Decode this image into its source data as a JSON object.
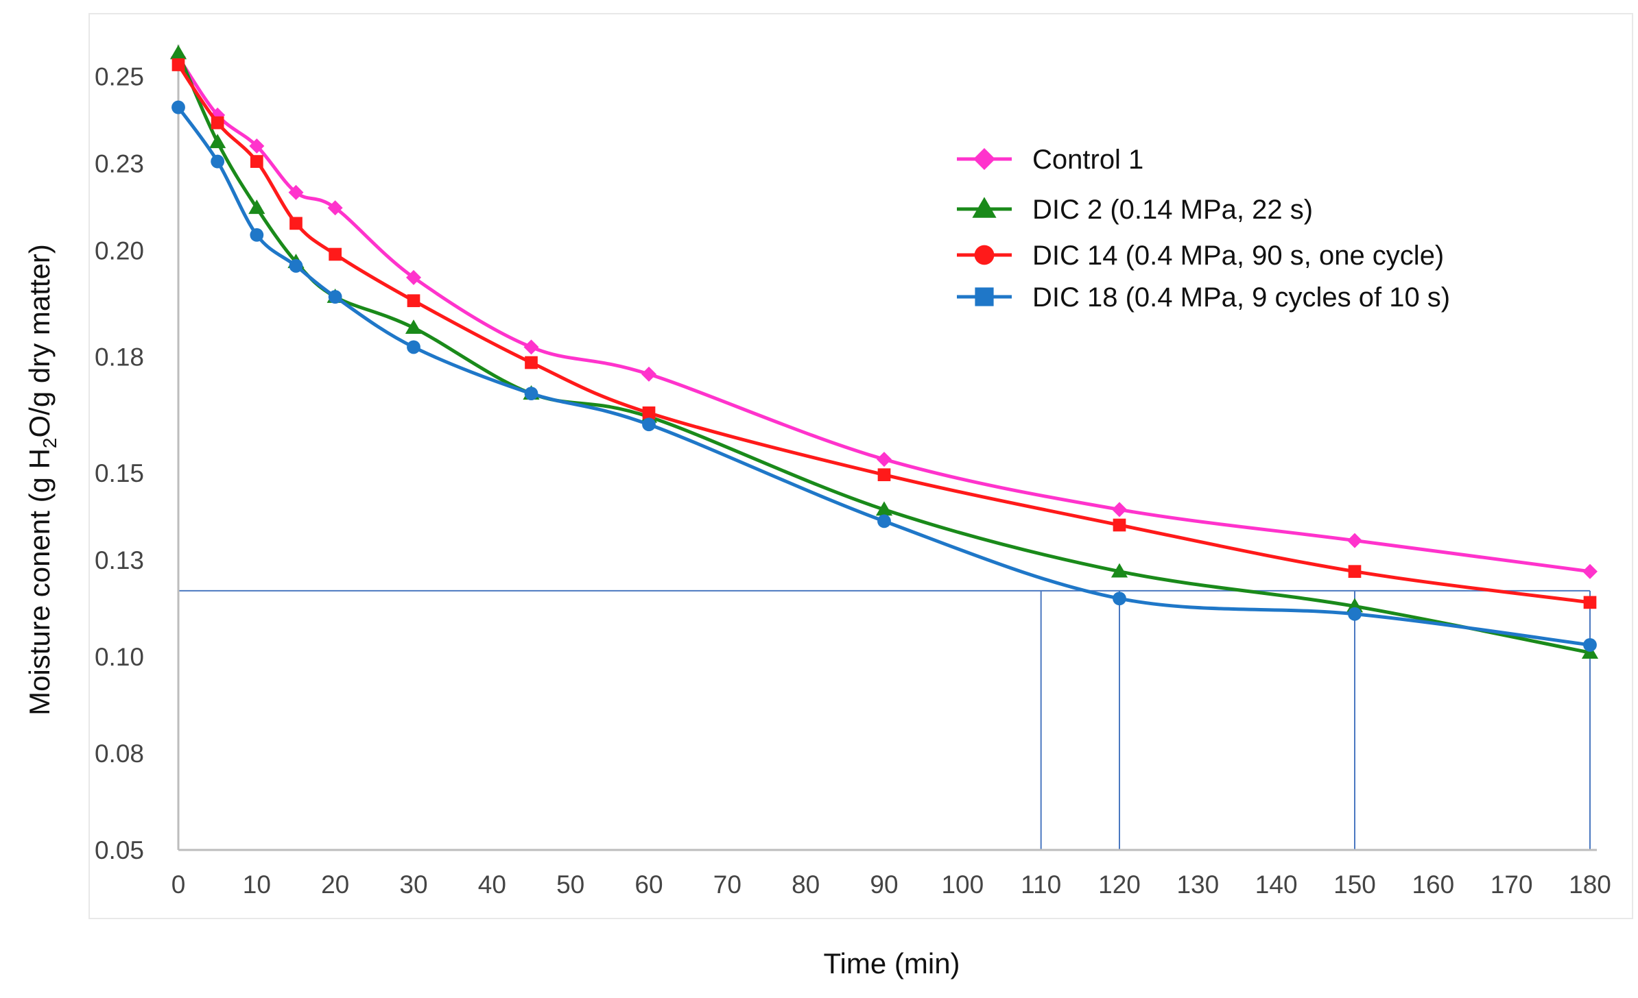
{
  "chart_data": {
    "type": "line",
    "xlabel": "Time (min)",
    "ylabel": {
      "prefix": "Moisture conent (g H",
      "subscript": "2",
      "suffix": "O/g dry matter)"
    },
    "xlim": [
      0,
      180
    ],
    "ylim": [
      0.05,
      0.26
    ],
    "x_ticks": [
      "0",
      "10",
      "20",
      "30",
      "40",
      "50",
      "60",
      "70",
      "80",
      "90",
      "100",
      "110",
      "120",
      "130",
      "140",
      "150",
      "160",
      "170",
      "180"
    ],
    "y_ticks": [
      {
        "label": "0.25",
        "value": 0.25
      },
      {
        "label": "0.23",
        "value": 0.2275
      },
      {
        "label": "0.20",
        "value": 0.205
      },
      {
        "label": "0.18",
        "value": 0.1775
      },
      {
        "label": "0.15",
        "value": 0.1475
      },
      {
        "label": "0.13",
        "value": 0.125
      },
      {
        "label": "0.10",
        "value": 0.1
      },
      {
        "label": "0.08",
        "value": 0.075
      },
      {
        "label": "0.05",
        "value": 0.05
      }
    ],
    "legend_position": "top-right",
    "x": [
      0,
      5,
      10,
      15,
      20,
      30,
      45,
      60,
      90,
      120,
      150,
      180
    ],
    "series": [
      {
        "name": "Control 1",
        "color": "#ff33cc",
        "marker": "diamond",
        "values": [
          0.255,
          0.24,
          0.232,
          0.22,
          0.216,
          0.198,
          0.18,
          0.173,
          0.151,
          0.138,
          0.13,
          0.122
        ]
      },
      {
        "name": "DIC 2 (0.14 MPa, 22 s)",
        "color": "#1a8a1a",
        "marker": "triangle",
        "values": [
          0.256,
          0.233,
          0.216,
          0.202,
          0.193,
          0.185,
          0.168,
          0.162,
          0.138,
          0.122,
          0.113,
          0.101
        ]
      },
      {
        "name": "DIC 14 (0.4 MPa, 90 s, one cycle)",
        "color": "#ff1a1a",
        "marker": "square",
        "values": [
          0.253,
          0.238,
          0.228,
          0.212,
          0.204,
          0.192,
          0.176,
          0.163,
          0.147,
          0.134,
          0.122,
          0.114
        ]
      },
      {
        "name": "DIC 18 (0.4 MPa, 9 cycles of 10 s)",
        "color": "#1f77c8",
        "marker": "circle",
        "values": [
          0.242,
          0.228,
          0.209,
          0.201,
          0.193,
          0.18,
          0.168,
          0.16,
          0.135,
          0.115,
          0.111,
          0.103
        ]
      }
    ],
    "legend_markers": [
      "diamond",
      "triangle",
      "circle",
      "square"
    ],
    "reference_lines": {
      "color": "#4a78c0",
      "horizontal_y": 0.117,
      "vertical_x": [
        110,
        120,
        150,
        180
      ]
    }
  }
}
